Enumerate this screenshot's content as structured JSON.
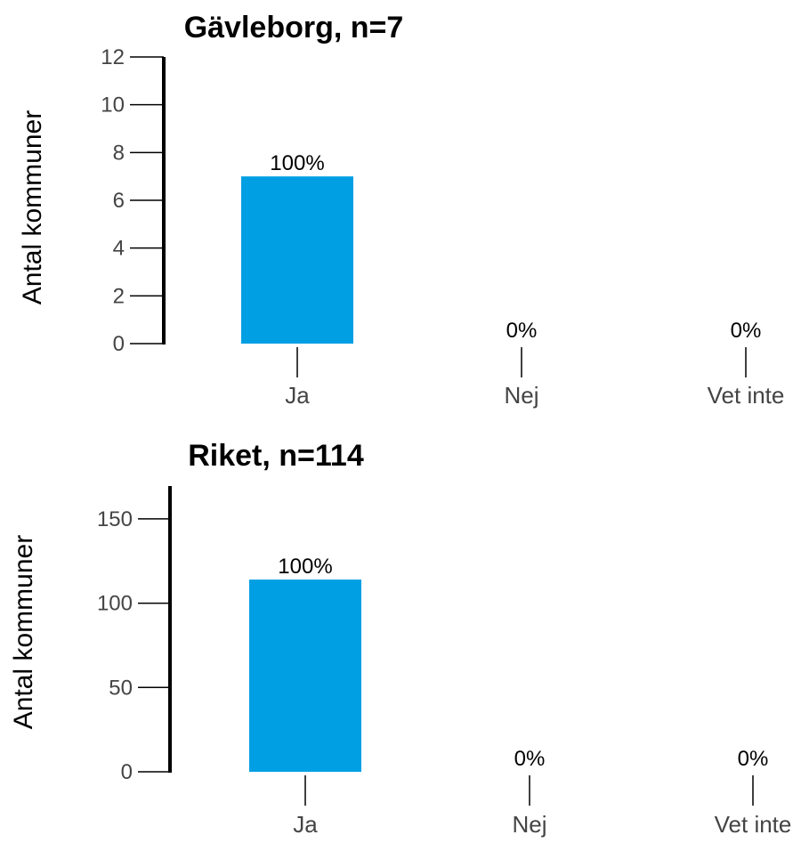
{
  "chart_data": [
    {
      "type": "bar",
      "title": "Gävleborg, n=7",
      "ylabel": "Antal kommuner",
      "xlabel": "",
      "categories": [
        "Ja",
        "Nej",
        "Vet inte"
      ],
      "values": [
        7,
        0,
        0
      ],
      "data_labels": [
        "100%",
        "0%",
        "0%"
      ],
      "yticks": [
        0,
        2,
        4,
        6,
        8,
        10,
        12
      ],
      "ytick_labels": [
        "0",
        "2",
        "4",
        "6",
        "8",
        "10",
        "12"
      ],
      "ylim": [
        0,
        12
      ],
      "bar_color": "#009fe3",
      "grid": false,
      "legend": "none"
    },
    {
      "type": "bar",
      "title": "Riket, n=114",
      "ylabel": "Antal kommuner",
      "xlabel": "",
      "categories": [
        "Ja",
        "Nej",
        "Vet inte"
      ],
      "values": [
        114,
        0,
        0
      ],
      "data_labels": [
        "100%",
        "0%",
        "0%"
      ],
      "yticks": [
        0,
        50,
        100,
        150
      ],
      "ytick_labels": [
        "0",
        "50",
        "100",
        "150"
      ],
      "ylim": [
        0,
        170
      ],
      "bar_color": "#009fe3",
      "grid": false,
      "legend": "none"
    }
  ]
}
